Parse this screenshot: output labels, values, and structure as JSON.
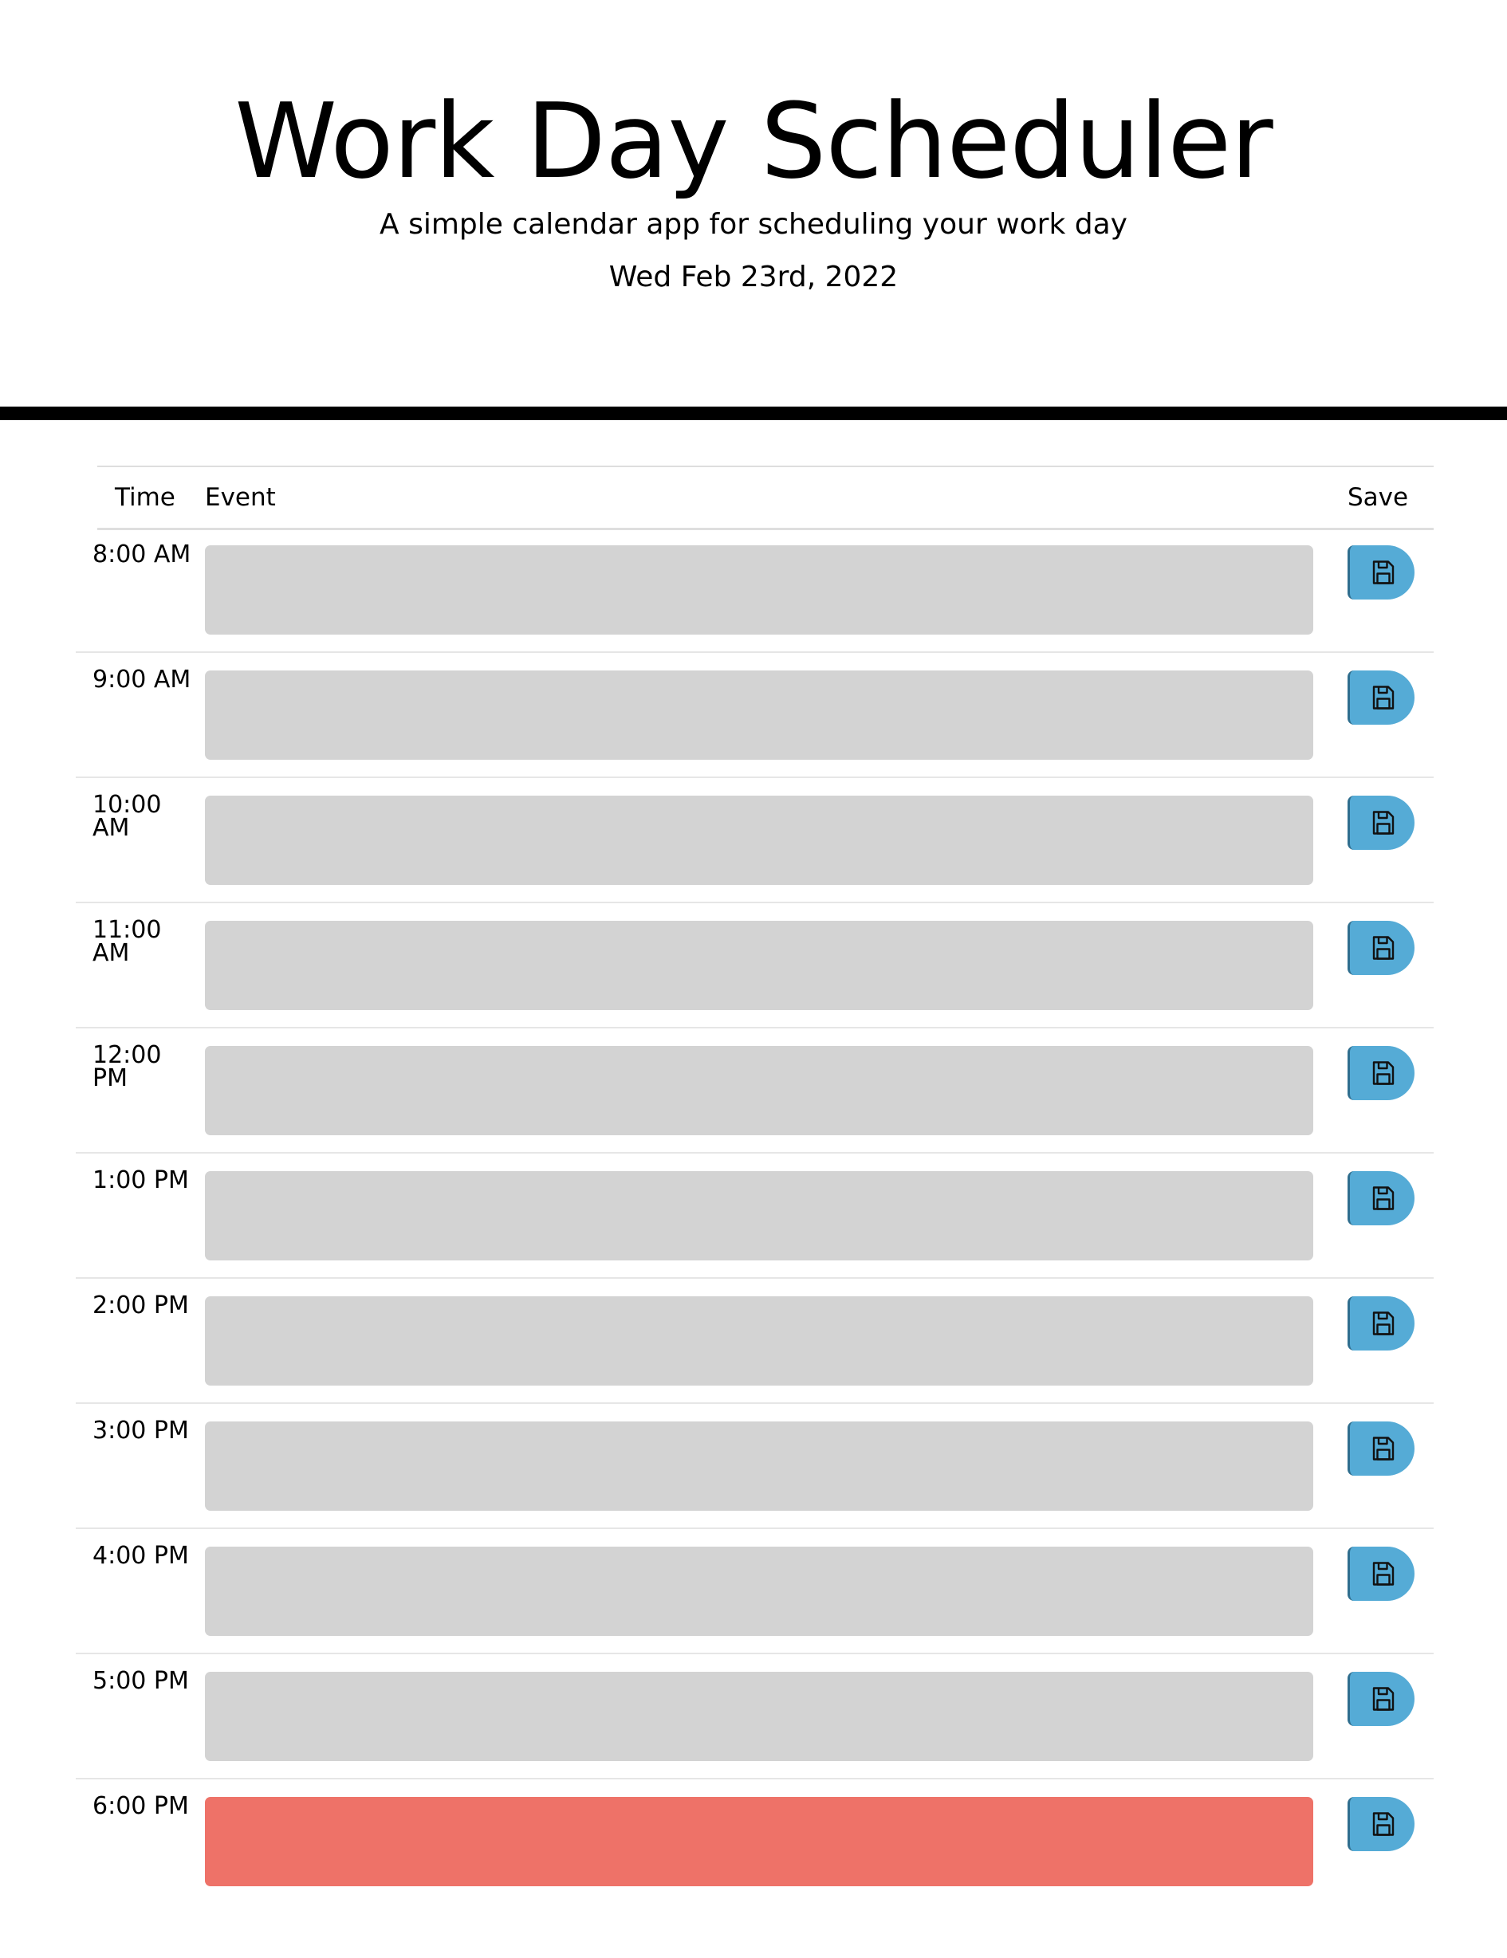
{
  "header": {
    "title": "Work Day Scheduler",
    "subtitle": "A simple calendar app for scheduling your work day",
    "date": "Wed Feb 23rd, 2022"
  },
  "table": {
    "columns": {
      "time": "Time",
      "event": "Event",
      "save": "Save"
    },
    "rows": [
      {
        "hour": "8:00 AM",
        "event_text": "",
        "status": "past"
      },
      {
        "hour": "9:00 AM",
        "event_text": "",
        "status": "past"
      },
      {
        "hour": "10:00 AM",
        "event_text": "",
        "status": "past"
      },
      {
        "hour": "11:00 AM",
        "event_text": "",
        "status": "past"
      },
      {
        "hour": "12:00 PM",
        "event_text": "",
        "status": "past"
      },
      {
        "hour": "1:00 PM",
        "event_text": "",
        "status": "past"
      },
      {
        "hour": "2:00 PM",
        "event_text": "",
        "status": "past"
      },
      {
        "hour": "3:00 PM",
        "event_text": "",
        "status": "past"
      },
      {
        "hour": "4:00 PM",
        "event_text": "",
        "status": "past"
      },
      {
        "hour": "5:00 PM",
        "event_text": "",
        "status": "past"
      },
      {
        "hour": "6:00 PM",
        "event_text": "",
        "status": "present"
      }
    ]
  },
  "colors": {
    "past": "#d3d3d3",
    "present": "#ee7268",
    "save_button": "#55abd6",
    "divider": "#000000"
  },
  "icons": {
    "save": "floppy-disk-icon"
  }
}
